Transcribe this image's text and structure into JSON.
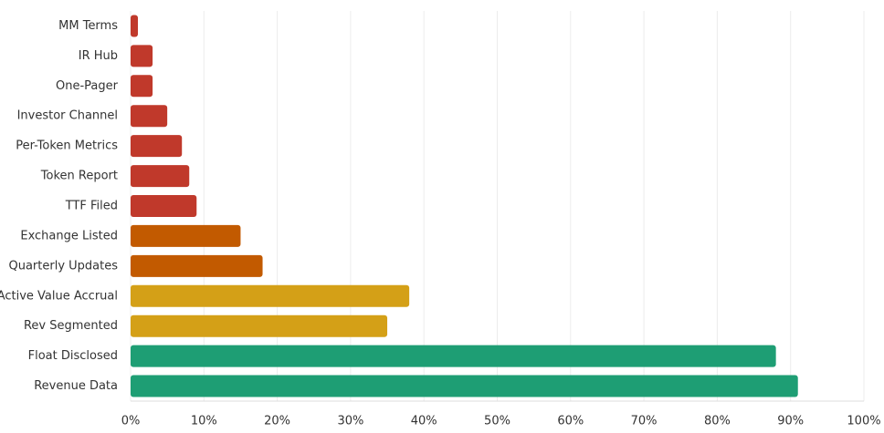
{
  "chart_data": {
    "type": "barh",
    "categories": [
      "MM Terms",
      "IR Hub",
      "One-Pager",
      "Investor Channel",
      "Per-Token Metrics",
      "Token Report",
      "TTF Filed",
      "Exchange Listed",
      "Quarterly Updates",
      "Active Value Accrual",
      "Rev Segmented",
      "Float Disclosed",
      "Revenue Data"
    ],
    "values": [
      1,
      3,
      3,
      5,
      7,
      8,
      9,
      15,
      18,
      38,
      35,
      88,
      91
    ],
    "colors": [
      "#c0392b",
      "#c0392b",
      "#c0392b",
      "#c0392b",
      "#c0392b",
      "#c0392b",
      "#c0392b",
      "#c25a00",
      "#c25a00",
      "#d4a017",
      "#d4a017",
      "#1e9e74",
      "#1e9e74"
    ],
    "xlim": [
      0,
      100
    ],
    "xticks": [
      {
        "value": 0,
        "label": "0%"
      },
      {
        "value": 10,
        "label": "10%"
      },
      {
        "value": 20,
        "label": "20%"
      },
      {
        "value": 30,
        "label": "30%"
      },
      {
        "value": 40,
        "label": "40%"
      },
      {
        "value": 50,
        "label": "50%"
      },
      {
        "value": 60,
        "label": "60%"
      },
      {
        "value": 70,
        "label": "70%"
      },
      {
        "value": 80,
        "label": "80%"
      },
      {
        "value": 90,
        "label": "90%"
      },
      {
        "value": 100,
        "label": "100%"
      }
    ],
    "grid": true
  }
}
